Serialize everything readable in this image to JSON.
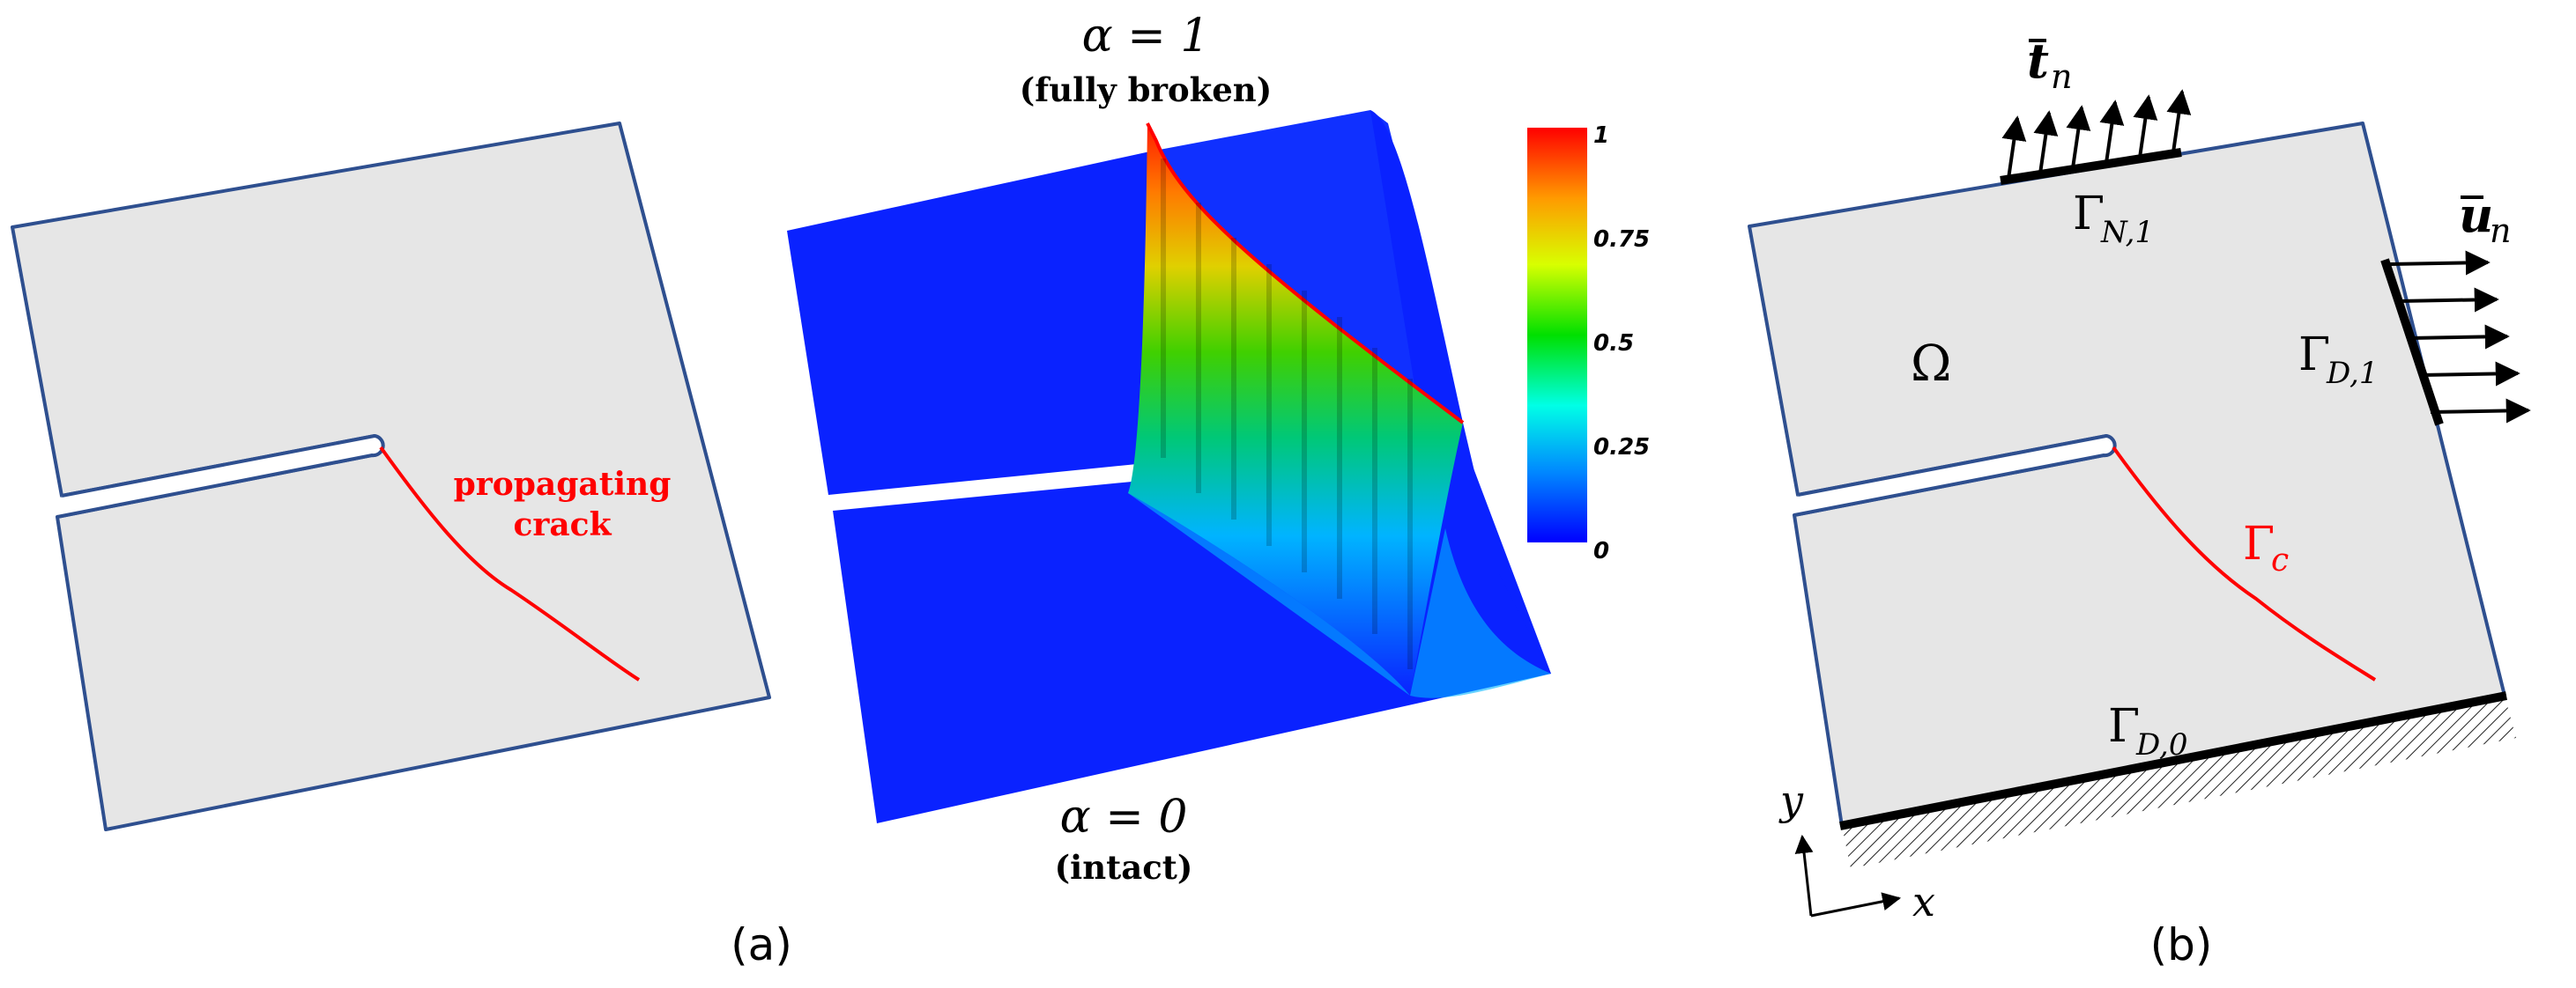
{
  "panel_a": {
    "caption": "(a)",
    "crack_label_line1": "propagating",
    "crack_label_line2": "crack",
    "alpha_one": "α = 1",
    "alpha_one_note": "(fully broken)",
    "alpha_zero": "α = 0",
    "alpha_zero_note": "(intact)",
    "colorbar": {
      "ticks": [
        "1",
        "0.75",
        "0.5",
        "0.25",
        "0"
      ],
      "colors": [
        "#ff0000",
        "#ffa000",
        "#d0ff00",
        "#00e000",
        "#00ffe0",
        "#0080ff",
        "#0000ff"
      ]
    },
    "colors": {
      "outline": "#2e4f8f",
      "fill": "#e6e6e6",
      "crack": "#ff0000",
      "surface": "#0a22ff"
    }
  },
  "panel_b": {
    "caption": "(b)",
    "traction_symbol": "t",
    "traction_sub": "n",
    "displacement_symbol": "u",
    "displacement_sub": "n",
    "gamma_n1": "Γ",
    "gamma_n1_sub": "N,1",
    "gamma_d1": "Γ",
    "gamma_d1_sub": "D,1",
    "gamma_d0": "Γ",
    "gamma_d0_sub": "D,0",
    "gamma_c": "Γ",
    "gamma_c_sub": "c",
    "omega": "Ω",
    "axis_x": "x",
    "axis_y": "y"
  }
}
